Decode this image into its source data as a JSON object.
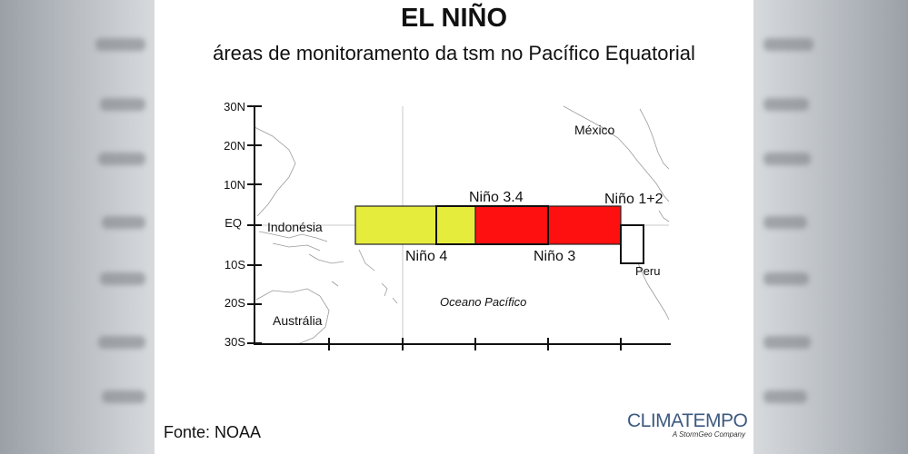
{
  "header": {
    "title": "EL NIÑO",
    "subtitle": "áreas de monitoramento da tsm no Pacífico Equatorial"
  },
  "map": {
    "lat_labels": [
      "30N",
      "20N",
      "10N",
      "EQ",
      "10S",
      "20S",
      "30S"
    ],
    "places": {
      "mexico": "México",
      "indonesia": "Indonésia",
      "peru": "Peru",
      "australia": "Austrália",
      "ocean": "Oceano Pacífico"
    },
    "regions": {
      "nino4": {
        "label": "Niño 4",
        "color": "#e6ec3c"
      },
      "nino34": {
        "label": "Niño 3.4",
        "color": "#e6ec3c"
      },
      "nino3": {
        "label": "Niño 3",
        "color": "#ff1010"
      },
      "nino12": {
        "label": "Niño 1+2",
        "color": "#ffffff"
      }
    }
  },
  "footer": {
    "source": "Fonte: NOAA",
    "logo_main": "CLIMATEMPO",
    "logo_sub": "A StormGeo Company"
  }
}
